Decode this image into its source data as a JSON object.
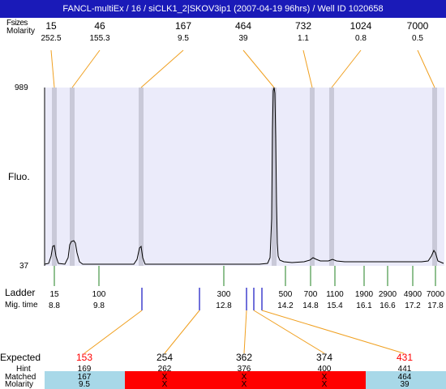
{
  "title": "FANCL-multiEx / 16 / siCLK1_2|SKOV3ip1 (2007-04-19 96hrs) / Well ID 1020658",
  "top_labels": {
    "header": "Fsizes",
    "molarity": "Molarity"
  },
  "y_axis": {
    "label": "Fluo.",
    "max": "989",
    "min": "37"
  },
  "peaks": [
    {
      "size": "15",
      "molarity": "252.5"
    },
    {
      "size": "46",
      "molarity": "155.3"
    },
    {
      "size": "167",
      "molarity": "9.5"
    },
    {
      "size": "464",
      "molarity": "39"
    },
    {
      "size": "732",
      "molarity": "1.1"
    },
    {
      "size": "1024",
      "molarity": "0.8"
    },
    {
      "size": "7000",
      "molarity": "0.5"
    }
  ],
  "ladder": {
    "label": "Ladder",
    "mig_label": "Mig. time",
    "items": [
      {
        "size": "15",
        "time": "8.8"
      },
      {
        "size": "100",
        "time": "9.8"
      },
      {
        "size": "300",
        "time": "12.8"
      },
      {
        "size": "500",
        "time": "14.2"
      },
      {
        "size": "700",
        "time": "14.8"
      },
      {
        "size": "1100",
        "time": "15.4"
      },
      {
        "size": "1900",
        "time": "16.1"
      },
      {
        "size": "2900",
        "time": "16.6"
      },
      {
        "size": "4900",
        "time": "17.2"
      },
      {
        "size": "7000",
        "time": "17.8"
      }
    ]
  },
  "expected": {
    "labels": {
      "expected": "Expected",
      "hint": "Hint",
      "matched": "Matched",
      "molarity": "Molarity"
    },
    "columns": [
      {
        "expected": "153",
        "hint": "169",
        "matched": "167",
        "molarity": "9.5",
        "status": "matched"
      },
      {
        "expected": "254",
        "hint": "262",
        "matched": "X",
        "molarity": "X",
        "status": "missing"
      },
      {
        "expected": "362",
        "hint": "376",
        "matched": "X",
        "molarity": "X",
        "status": "missing"
      },
      {
        "expected": "374",
        "hint": "400",
        "matched": "X",
        "molarity": "X",
        "status": "missing"
      },
      {
        "expected": "431",
        "hint": "441",
        "matched": "464",
        "molarity": "39",
        "status": "matched"
      }
    ]
  },
  "colors": {
    "title_bg": "#1a1ab8",
    "plot_bg": "#ebebfa",
    "peak_band": "#c9c9d8",
    "peak_connector": "#f0a020",
    "ladder_tick": "#208020",
    "sample_tick": "#1010c0",
    "expected_red": "#ff0000",
    "matched_bg": "#a8d8e8",
    "missing_bg": "#ff0000"
  }
}
